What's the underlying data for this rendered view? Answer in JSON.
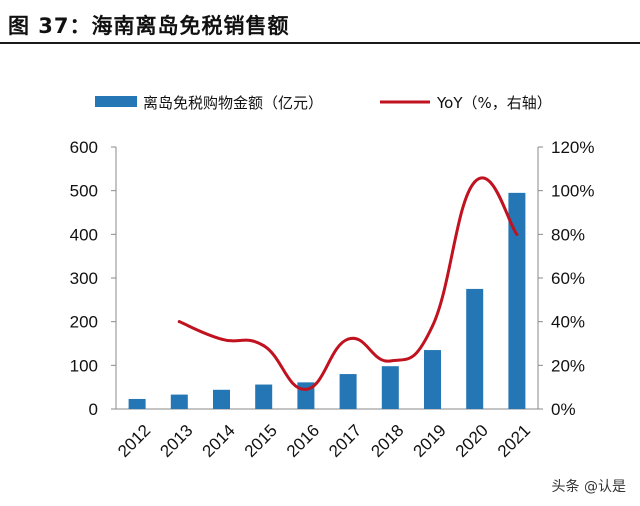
{
  "figure": {
    "title": "图 37：海南离岛免税销售额",
    "watermark": "头条 @认是"
  },
  "colors": {
    "bar": "#2476b4",
    "line": "#c1121f",
    "axis": "#8a8a8a",
    "text": "#111111"
  },
  "chart_data": {
    "type": "bar",
    "categories": [
      "2012",
      "2013",
      "2014",
      "2015",
      "2016",
      "2017",
      "2018",
      "2019",
      "2020",
      "2021"
    ],
    "series": [
      {
        "name": "离岛免税购物金额（亿元）",
        "type": "bar",
        "axis": "left",
        "values": [
          23,
          33,
          44,
          56,
          61,
          80,
          98,
          135,
          275,
          495
        ]
      },
      {
        "name": "YoY（%，右轴）",
        "type": "line",
        "axis": "right",
        "values": [
          null,
          40,
          32,
          29,
          9,
          32,
          22,
          38,
          104,
          80
        ]
      }
    ],
    "y_left": {
      "min": 0,
      "max": 600,
      "ticks": [
        "0",
        "100",
        "200",
        "300",
        "400",
        "500",
        "600"
      ]
    },
    "y_right": {
      "min": 0,
      "max": 120,
      "ticks": [
        "0%",
        "20%",
        "40%",
        "60%",
        "80%",
        "100%",
        "120%"
      ]
    },
    "legend_position": "top",
    "grid": false
  }
}
